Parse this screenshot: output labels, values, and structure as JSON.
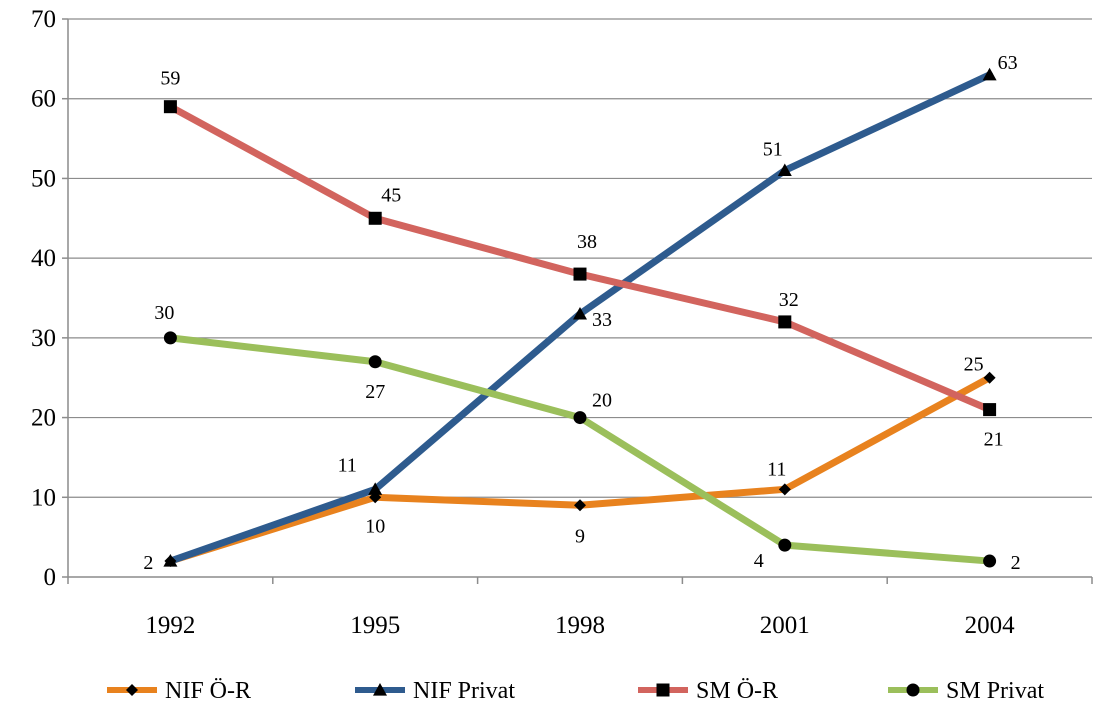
{
  "chart_data": {
    "type": "line",
    "title": "",
    "xlabel": "",
    "ylabel": "",
    "categories": [
      "1992",
      "1995",
      "1998",
      "2001",
      "2004"
    ],
    "ylim": [
      0,
      70
    ],
    "yticks": [
      0,
      10,
      20,
      30,
      40,
      50,
      60,
      70
    ],
    "grid": true,
    "legend_position": "bottom",
    "series": [
      {
        "name": "NIF Ö-R",
        "values": [
          2,
          10,
          9,
          11,
          25
        ],
        "color": "#E8821E",
        "marker": "diamond"
      },
      {
        "name": "NIF Privat",
        "values": [
          2,
          11,
          33,
          51,
          63
        ],
        "color": "#2E5B8E",
        "marker": "triangle"
      },
      {
        "name": "SM Ö-R",
        "values": [
          59,
          45,
          38,
          32,
          21
        ],
        "color": "#D2645E",
        "marker": "square"
      },
      {
        "name": "SM Privat",
        "values": [
          30,
          27,
          20,
          4,
          2
        ],
        "color": "#9BBF5B",
        "marker": "circle"
      }
    ],
    "data_labels": [
      {
        "series": 0,
        "index": 0,
        "text": "2"
      },
      {
        "series": 0,
        "index": 1,
        "text": "10"
      },
      {
        "series": 0,
        "index": 2,
        "text": "9"
      },
      {
        "series": 0,
        "index": 3,
        "text": "11"
      },
      {
        "series": 0,
        "index": 4,
        "text": "25"
      },
      {
        "series": 1,
        "index": 1,
        "text": "11"
      },
      {
        "series": 1,
        "index": 2,
        "text": "33"
      },
      {
        "series": 1,
        "index": 3,
        "text": "51"
      },
      {
        "series": 1,
        "index": 4,
        "text": "63"
      },
      {
        "series": 2,
        "index": 0,
        "text": "59"
      },
      {
        "series": 2,
        "index": 1,
        "text": "45"
      },
      {
        "series": 2,
        "index": 2,
        "text": "38"
      },
      {
        "series": 2,
        "index": 3,
        "text": "32"
      },
      {
        "series": 2,
        "index": 4,
        "text": "21"
      },
      {
        "series": 3,
        "index": 0,
        "text": "30"
      },
      {
        "series": 3,
        "index": 1,
        "text": "27"
      },
      {
        "series": 3,
        "index": 2,
        "text": "20"
      },
      {
        "series": 3,
        "index": 3,
        "text": "4"
      },
      {
        "series": 3,
        "index": 4,
        "text": "2"
      }
    ]
  }
}
